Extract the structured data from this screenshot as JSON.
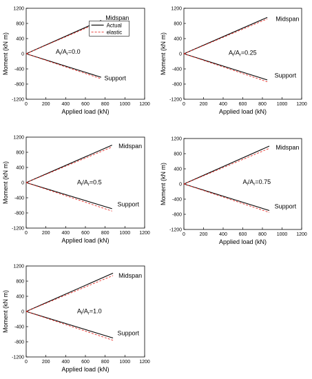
{
  "chart_data": [
    {
      "type": "line",
      "annotation": {
        "pre": "A",
        "sub1": "l",
        "mid": "/A",
        "sub2": "r",
        "post": "=0.0"
      },
      "xlabel": "Applied load (kN)",
      "ylabel": "Moment (kN m)",
      "xlim": [
        0,
        1200
      ],
      "ylim": [
        -1200,
        1200
      ],
      "xticks": [
        "0",
        "200",
        "400",
        "600",
        "800",
        "1000",
        "1200"
      ],
      "yticks": [
        "-1200",
        "-800",
        "-400",
        "0",
        "400",
        "800",
        "1200"
      ],
      "legend": {
        "placement": "top-center",
        "entries": [
          "Actual",
          "elastic"
        ]
      },
      "labels": {
        "midspan": "Midspan",
        "support": "Support"
      },
      "series": [
        {
          "name": "Actual",
          "style": "solid",
          "color": "#000000",
          "points": [
            [
              0,
              0
            ],
            [
              760,
              880
            ]
          ]
        },
        {
          "name": "Actual",
          "style": "solid",
          "color": "#000000",
          "points": [
            [
              0,
              0
            ],
            [
              760,
              -620
            ]
          ]
        },
        {
          "name": "elastic",
          "style": "dashed",
          "color": "#e8302a",
          "points": [
            [
              0,
              0
            ],
            [
              760,
              850
            ]
          ]
        },
        {
          "name": "elastic",
          "style": "dashed",
          "color": "#e8302a",
          "points": [
            [
              0,
              0
            ],
            [
              760,
              -660
            ]
          ]
        }
      ]
    },
    {
      "type": "line",
      "annotation": {
        "pre": "A",
        "sub1": "l",
        "mid": "/A",
        "sub2": "r",
        "post": "=0.25"
      },
      "xlabel": "Applied load (kN)",
      "ylabel": "Moment (kN m)",
      "xlim": [
        0,
        1200
      ],
      "ylim": [
        -1200,
        1200
      ],
      "xticks": [
        "0",
        "200",
        "400",
        "600",
        "800",
        "1000",
        "1200"
      ],
      "yticks": [
        "-1200",
        "-800",
        "-400",
        "0",
        "400",
        "800",
        "1200"
      ],
      "labels": {
        "midspan": "Midspan",
        "support": "Support"
      },
      "series": [
        {
          "name": "Actual",
          "style": "solid",
          "color": "#000000",
          "points": [
            [
              0,
              0
            ],
            [
              850,
              960
            ]
          ]
        },
        {
          "name": "Actual",
          "style": "solid",
          "color": "#000000",
          "points": [
            [
              0,
              0
            ],
            [
              850,
              -690
            ]
          ]
        },
        {
          "name": "elastic",
          "style": "dashed",
          "color": "#e8302a",
          "points": [
            [
              0,
              0
            ],
            [
              850,
              920
            ]
          ]
        },
        {
          "name": "elastic",
          "style": "dashed",
          "color": "#e8302a",
          "points": [
            [
              0,
              0
            ],
            [
              850,
              -740
            ]
          ]
        }
      ]
    },
    {
      "type": "line",
      "annotation": {
        "pre": "A",
        "sub1": "l",
        "mid": "/A",
        "sub2": "r",
        "post": "=0.5"
      },
      "xlabel": "Applied load (kN)",
      "ylabel": "Moment (kN m)",
      "xlim": [
        0,
        1200
      ],
      "ylim": [
        -1200,
        1200
      ],
      "xticks": [
        "0",
        "200",
        "400",
        "600",
        "800",
        "1000",
        "1200"
      ],
      "yticks": [
        "-1200",
        "-800",
        "-400",
        "0",
        "400",
        "800",
        "1200"
      ],
      "labels": {
        "midspan": "Midspan",
        "support": "Support"
      },
      "series": [
        {
          "name": "Actual",
          "style": "solid",
          "color": "#000000",
          "points": [
            [
              0,
              0
            ],
            [
              870,
              990
            ]
          ]
        },
        {
          "name": "Actual",
          "style": "solid",
          "color": "#000000",
          "points": [
            [
              0,
              0
            ],
            [
              870,
              -690
            ]
          ]
        },
        {
          "name": "elastic",
          "style": "dashed",
          "color": "#e8302a",
          "points": [
            [
              0,
              0
            ],
            [
              870,
              940
            ]
          ]
        },
        {
          "name": "elastic",
          "style": "dashed",
          "color": "#e8302a",
          "points": [
            [
              0,
              0
            ],
            [
              870,
              -750
            ]
          ]
        }
      ]
    },
    {
      "type": "line",
      "annotation": {
        "pre": "A",
        "sub1": "l",
        "mid": "/A",
        "sub2": "r",
        "post": "=0.75"
      },
      "xlabel": "Applied load (kN)",
      "ylabel": "Moment (kN m)",
      "xlim": [
        0,
        1200
      ],
      "ylim": [
        -1200,
        1200
      ],
      "xticks": [
        "0",
        "200",
        "400",
        "600",
        "800",
        "1000",
        "1200"
      ],
      "yticks": [
        "-1200",
        "-800",
        "-400",
        "0",
        "400",
        "800",
        "1200"
      ],
      "labels": {
        "midspan": "Midspan",
        "support": "Support"
      },
      "series": [
        {
          "name": "Actual",
          "style": "solid",
          "color": "#000000",
          "points": [
            [
              0,
              0
            ],
            [
              870,
              1000
            ]
          ]
        },
        {
          "name": "Actual",
          "style": "solid",
          "color": "#000000",
          "points": [
            [
              0,
              0
            ],
            [
              870,
              -700
            ]
          ]
        },
        {
          "name": "elastic",
          "style": "dashed",
          "color": "#e8302a",
          "points": [
            [
              0,
              0
            ],
            [
              870,
              940
            ]
          ]
        },
        {
          "name": "elastic",
          "style": "dashed",
          "color": "#e8302a",
          "points": [
            [
              0,
              0
            ],
            [
              870,
              -750
            ]
          ]
        }
      ]
    },
    {
      "type": "line",
      "annotation": {
        "pre": "A",
        "sub1": "l",
        "mid": "/A",
        "sub2": "r",
        "post": "=1.0"
      },
      "xlabel": "Applied load (kN)",
      "ylabel": "Moment (kN m)",
      "xlim": [
        0,
        1200
      ],
      "ylim": [
        -1200,
        1200
      ],
      "xticks": [
        "0",
        "200",
        "400",
        "600",
        "800",
        "1000",
        "1200"
      ],
      "yticks": [
        "-1200",
        "-800",
        "-400",
        "0",
        "400",
        "800",
        "1200"
      ],
      "labels": {
        "midspan": "Midspan",
        "support": "Support"
      },
      "series": [
        {
          "name": "Actual",
          "style": "solid",
          "color": "#000000",
          "points": [
            [
              0,
              0
            ],
            [
              880,
              1010
            ]
          ]
        },
        {
          "name": "Actual",
          "style": "solid",
          "color": "#000000",
          "points": [
            [
              0,
              0
            ],
            [
              880,
              -700
            ]
          ]
        },
        {
          "name": "elastic",
          "style": "dashed",
          "color": "#e8302a",
          "points": [
            [
              0,
              0
            ],
            [
              880,
              950
            ]
          ]
        },
        {
          "name": "elastic",
          "style": "dashed",
          "color": "#e8302a",
          "points": [
            [
              0,
              0
            ],
            [
              880,
              -760
            ]
          ]
        }
      ]
    }
  ]
}
